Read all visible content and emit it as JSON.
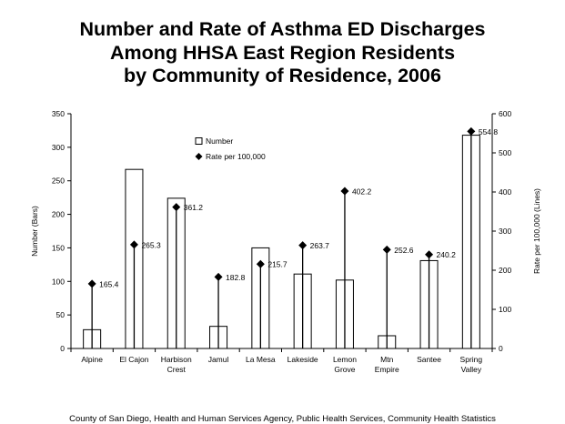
{
  "title_lines": [
    "Number and Rate of Asthma ED Discharges",
    "Among HHSA East Region Residents",
    "by Community of Residence, 2006"
  ],
  "footer": "County of San Diego, Health and Human Services Agency, Public Health Services, Community Health Statistics",
  "chart_data": {
    "type": "bar",
    "categories": [
      [
        "Alpine"
      ],
      [
        "El Cajon"
      ],
      [
        "Harbison",
        "Crest"
      ],
      [
        "Jamul"
      ],
      [
        "La Mesa"
      ],
      [
        "Lakeside"
      ],
      [
        "Lemon",
        "Grove"
      ],
      [
        "Mtn",
        "Empire"
      ],
      [
        "Santee"
      ],
      [
        "Spring",
        "Valley"
      ]
    ],
    "series": [
      {
        "name": "Number",
        "type": "bar",
        "axis": "left",
        "values": [
          28,
          267,
          224,
          33,
          150,
          111,
          102,
          19,
          131,
          318
        ]
      },
      {
        "name": "Rate per 100,000",
        "type": "lollipop",
        "axis": "right",
        "values": [
          165.4,
          265.3,
          361.2,
          182.8,
          215.7,
          263.7,
          402.2,
          252.6,
          240.2,
          554.8
        ],
        "labels": [
          "165.4",
          "265.3",
          "361.2",
          "182.8",
          "215.7",
          "263.7",
          "402.2",
          "252.6",
          "240.2",
          "554.8"
        ]
      }
    ],
    "ylabel": "Number (Bars)",
    "y2label": "Rate per 100,000 (Lines)",
    "ylim": [
      0,
      350
    ],
    "y2lim": [
      0,
      600
    ],
    "yticks": [
      0,
      50,
      100,
      150,
      200,
      250,
      300,
      350
    ],
    "y2ticks": [
      0,
      100,
      200,
      300,
      400,
      500,
      600
    ],
    "legend_position": "upper-middle",
    "colors": {
      "bar_fill": "#ffffff",
      "stroke": "#000000",
      "marker": "#000000"
    }
  }
}
